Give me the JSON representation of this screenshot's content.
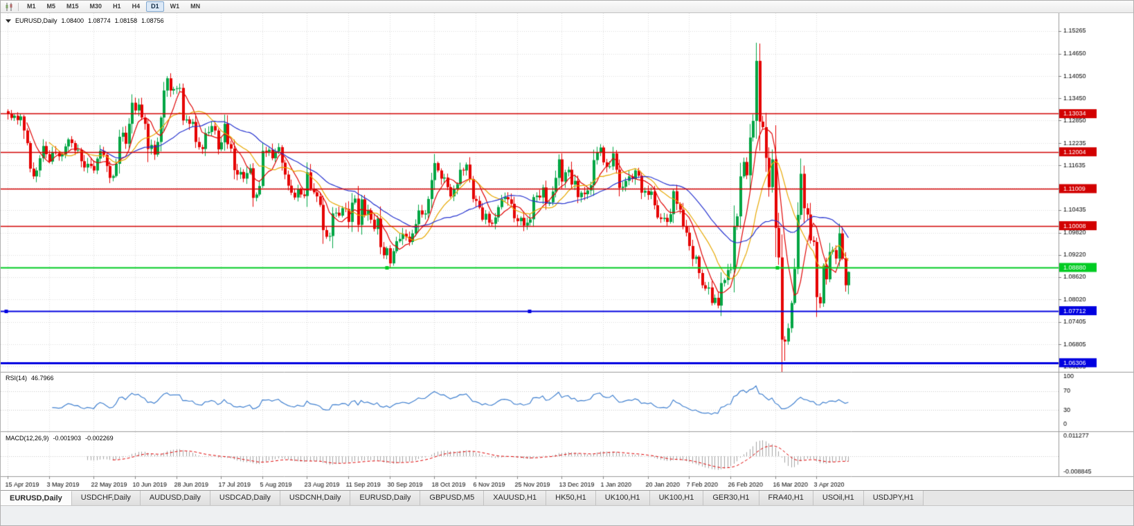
{
  "toolbar": {
    "timeframes": [
      "M1",
      "M5",
      "M15",
      "M30",
      "H1",
      "H4",
      "D1",
      "W1",
      "MN"
    ],
    "active_timeframe": "D1"
  },
  "chart_header": {
    "symbol": "EURUSD,Daily",
    "open": "1.08400",
    "high": "1.08774",
    "low": "1.08158",
    "close": "1.08756"
  },
  "indicators": {
    "rsi": {
      "name": "RSI(14)",
      "value": "46.7966",
      "color": "#4080d0",
      "axis_labels": [
        "100",
        "70",
        "30",
        "0"
      ],
      "levels": [
        70,
        30
      ]
    },
    "macd": {
      "name": "MACD(12,26,9)",
      "main_value": "-0.001903",
      "signal_value": "-0.002269",
      "axis_top": "0.011277",
      "axis_bottom": "-0.008845",
      "histogram_color": "#a4a4a4",
      "signal_color": "#e00000"
    }
  },
  "chart_data": {
    "type": "candlestick",
    "symbol": "EURUSD",
    "timeframe": "Daily",
    "up_color": "#00a543",
    "down_color": "#e60000",
    "price_top": 1.1575,
    "price_bottom": 1.0606,
    "first_open": 1.131,
    "price_ticks": [
      "1.15265",
      "1.14650",
      "1.14050",
      "1.13450",
      "1.12850",
      "1.12235",
      "1.11635",
      "1.11035",
      "1.10435",
      "1.09820",
      "1.09220",
      "1.08620",
      "1.08020",
      "1.07405",
      "1.06805",
      "1.06205"
    ],
    "date_labels": [
      "15 Apr 2019",
      "3 May 2019",
      "22 May 2019",
      "10 Jun 2019",
      "28 Jun 2019",
      "17 Jul 2019",
      "5 Aug 2019",
      "23 Aug 2019",
      "11 Sep 2019",
      "30 Sep 2019",
      "18 Oct 2019",
      "6 Nov 2019",
      "25 Nov 2019",
      "13 Dec 2019",
      "1 Jan 2020",
      "20 Jan 2020",
      "7 Feb 2020",
      "26 Feb 2020",
      "16 Mar 2020",
      "3 Apr 2020"
    ],
    "horizontal_lines": [
      {
        "label": "1.13034",
        "price": 1.13034,
        "color": "#d20000",
        "width": 1.6
      },
      {
        "label": "1.12004",
        "price": 1.12004,
        "color": "#d20000",
        "width": 1.6
      },
      {
        "label": "1.11009",
        "price": 1.11009,
        "color": "#d20000",
        "width": 1.6
      },
      {
        "label": "1.10008",
        "price": 1.10008,
        "color": "#d20000",
        "width": 1.6
      },
      {
        "label": "1.08880",
        "price": 1.0888,
        "color": "#00cc22",
        "width": 2.2,
        "handles": [
          558,
          1122
        ]
      },
      {
        "label": "1.07712",
        "price": 1.07712,
        "color": "#0000e0",
        "width": 2,
        "handles": [
          8,
          764
        ]
      },
      {
        "label": "1.06306",
        "price": 1.06306,
        "color": "#0000e0",
        "width": 3
      }
    ],
    "moving_averages": [
      {
        "period": 7,
        "color": "#e00000"
      },
      {
        "period": 14,
        "color": "#e8a800"
      },
      {
        "period": 30,
        "color": "#2633d0"
      }
    ],
    "wick_overrides": [
      {
        "i": 235,
        "high": 1.1495
      },
      {
        "i": 244,
        "low": 1.0636
      },
      {
        "i": 264,
        "high": 1.08774,
        "low": 1.08158
      }
    ],
    "closes": [
      1.1304,
      1.1292,
      1.1298,
      1.1286,
      1.1296,
      1.1258,
      1.1224,
      1.1155,
      1.1134,
      1.115,
      1.1183,
      1.1216,
      1.1194,
      1.1174,
      1.12,
      1.1197,
      1.1188,
      1.1193,
      1.1215,
      1.1234,
      1.1224,
      1.1204,
      1.1206,
      1.1175,
      1.1158,
      1.1168,
      1.1162,
      1.115,
      1.1182,
      1.1203,
      1.1192,
      1.1162,
      1.113,
      1.1135,
      1.1168,
      1.1241,
      1.1252,
      1.1222,
      1.1276,
      1.1333,
      1.1312,
      1.1328,
      1.1293,
      1.1276,
      1.1208,
      1.1219,
      1.1193,
      1.1227,
      1.1293,
      1.1366,
      1.1399,
      1.1366,
      1.137,
      1.1372,
      1.1373,
      1.1285,
      1.1288,
      1.1276,
      1.1281,
      1.1227,
      1.1213,
      1.1208,
      1.1251,
      1.1254,
      1.127,
      1.1258,
      1.1207,
      1.1226,
      1.1276,
      1.1221,
      1.1209,
      1.1151,
      1.1139,
      1.1146,
      1.1128,
      1.1143,
      1.1156,
      1.1076,
      1.1085,
      1.1108,
      1.1203,
      1.12,
      1.1206,
      1.1183,
      1.1201,
      1.1213,
      1.1171,
      1.1139,
      1.1109,
      1.109,
      1.1077,
      1.11,
      1.1085,
      1.1081,
      1.1145,
      1.1101,
      1.1091,
      1.108,
      1.1057,
      1.0989,
      1.0971,
      1.0973,
      1.1034,
      1.1036,
      1.1028,
      1.1048,
      1.1046,
      1.1011,
      1.1063,
      1.1074,
      1.1003,
      1.1072,
      1.103,
      1.1042,
      1.1017,
      1.0992,
      1.102,
      1.0943,
      1.0921,
      1.094,
      1.0899,
      1.0932,
      1.0959,
      1.0965,
      1.0979,
      1.0971,
      1.0957,
      1.098,
      1.1005,
      1.1042,
      1.1031,
      1.1034,
      1.1073,
      1.1124,
      1.117,
      1.115,
      1.1128,
      1.1131,
      1.1105,
      1.108,
      1.1099,
      1.1113,
      1.1152,
      1.115,
      1.1166,
      1.1127,
      1.1073,
      1.1068,
      1.105,
      1.1017,
      1.1033,
      1.1009,
      1.1006,
      1.1023,
      1.1051,
      1.1073,
      1.1078,
      1.1072,
      1.106,
      1.1021,
      1.1013,
      1.1022,
      1.1001,
      1.1009,
      1.1018,
      1.1078,
      1.1082,
      1.1077,
      1.1104,
      1.106,
      1.1064,
      1.1093,
      1.113,
      1.118,
      1.112,
      1.1145,
      1.1152,
      1.1112,
      1.1122,
      1.1078,
      1.109,
      1.1086,
      1.1096,
      1.111,
      1.1178,
      1.1199,
      1.1212,
      1.1172,
      1.116,
      1.1161,
      1.1196,
      1.1152,
      1.1103,
      1.1106,
      1.1122,
      1.1134,
      1.1127,
      1.115,
      1.1136,
      1.109,
      1.1095,
      1.1084,
      1.1093,
      1.1056,
      1.1023,
      1.1019,
      1.1022,
      1.1011,
      1.1032,
      1.1094,
      1.106,
      1.1044,
      1.1,
      1.0982,
      1.0946,
      1.0911,
      1.0917,
      1.0873,
      1.084,
      1.0831,
      1.0834,
      1.0792,
      1.0806,
      1.0785,
      1.0846,
      1.0854,
      1.0881,
      1.0883,
      1.1,
      1.1026,
      1.1134,
      1.1173,
      1.1137,
      1.1239,
      1.1284,
      1.1446,
      1.1282,
      1.1267,
      1.1184,
      1.1105,
      1.118,
      1.0995,
      1.0915,
      1.0693,
      1.0688,
      1.0724,
      1.0792,
      1.0884,
      1.103,
      1.1141,
      1.1048,
      1.1031,
      1.0961,
      1.0957,
      1.0808,
      1.0791,
      1.0893,
      1.0856,
      1.093,
      1.0935,
      1.0912,
      1.098,
      1.0912,
      1.084,
      1.0876
    ]
  },
  "tabs": {
    "active_index": 0,
    "items": [
      "EURUSD,Daily",
      "USDCHF,Daily",
      "AUDUSD,Daily",
      "USDCAD,Daily",
      "USDCNH,Daily",
      "EURUSD,Daily",
      "GBPUSD,M5",
      "XAUUSD,H1",
      "HK50,H1",
      "UK100,H1",
      "UK100,H1",
      "GER30,H1",
      "FRA40,H1",
      "USOil,H1",
      "USDJPY,H1"
    ]
  }
}
